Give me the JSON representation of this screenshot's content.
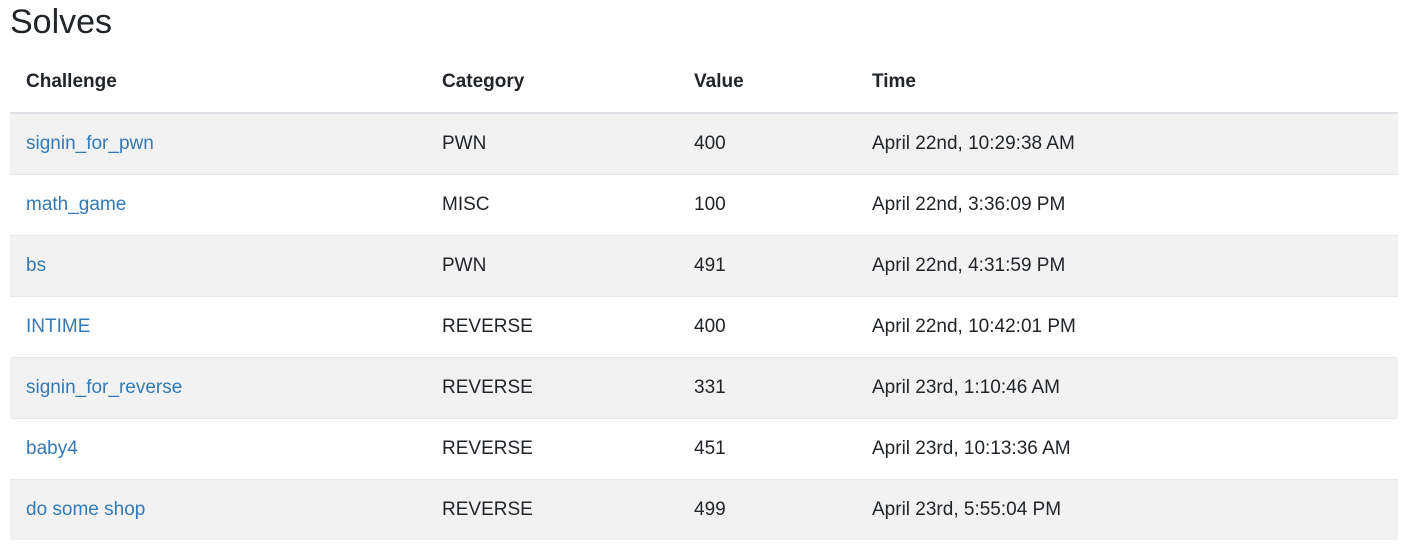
{
  "page_title": "Solves",
  "columns": {
    "challenge": "Challenge",
    "category": "Category",
    "value": "Value",
    "time": "Time"
  },
  "rows": [
    {
      "challenge": "signin_for_pwn",
      "category": "PWN",
      "value": "400",
      "time": "April 22nd, 10:29:38 AM"
    },
    {
      "challenge": "math_game",
      "category": "MISC",
      "value": "100",
      "time": "April 22nd, 3:36:09 PM"
    },
    {
      "challenge": "bs",
      "category": "PWN",
      "value": "491",
      "time": "April 22nd, 4:31:59 PM"
    },
    {
      "challenge": "INTIME",
      "category": "REVERSE",
      "value": "400",
      "time": "April 22nd, 10:42:01 PM"
    },
    {
      "challenge": "signin_for_reverse",
      "category": "REVERSE",
      "value": "331",
      "time": "April 23rd, 1:10:46 AM"
    },
    {
      "challenge": "baby4",
      "category": "REVERSE",
      "value": "451",
      "time": "April 23rd, 10:13:36 AM"
    },
    {
      "challenge": "do some shop",
      "category": "REVERSE",
      "value": "499",
      "time": "April 23rd, 5:55:04 PM"
    }
  ],
  "colors": {
    "link": "#337ab7",
    "stripe": "#f2f2f2",
    "text": "#212529"
  }
}
